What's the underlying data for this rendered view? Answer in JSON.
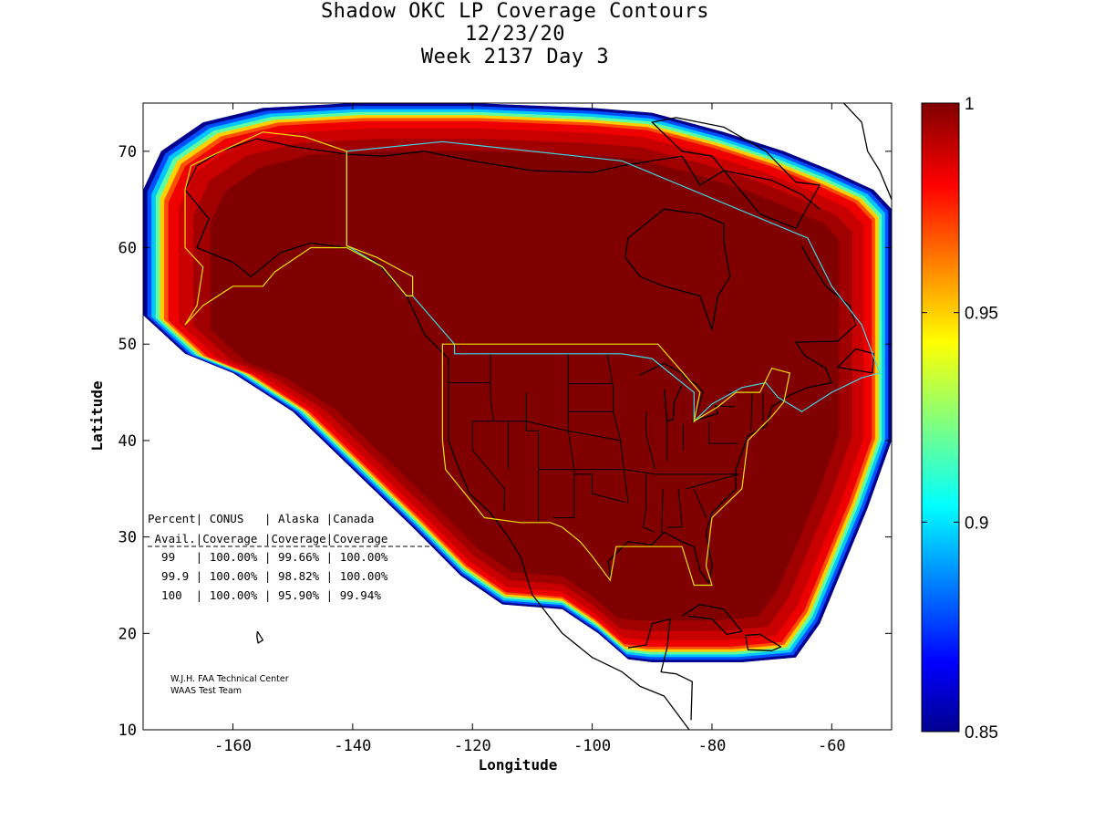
{
  "title": {
    "line1": "Shadow OKC LP Coverage Contours",
    "line2": "12/23/20",
    "line3": "Week 2137 Day 3"
  },
  "chart_data": {
    "type": "heatmap",
    "title": "Shadow OKC LP Coverage Contours",
    "subtitle": [
      "12/23/20",
      "Week 2137 Day 3"
    ],
    "xlabel": "Longitude",
    "ylabel": "Latitude",
    "xlim": [
      -175,
      -50
    ],
    "ylim": [
      10,
      75
    ],
    "xticks": [
      -160,
      -140,
      -120,
      -100,
      -80,
      -60
    ],
    "yticks": [
      10,
      20,
      30,
      40,
      50,
      60,
      70
    ],
    "colorbar": {
      "min": 0.85,
      "max": 1,
      "ticks": [
        0.85,
        0.9,
        0.95,
        1
      ],
      "tick_labels": [
        "0.85",
        "0.9",
        "0.95",
        "1"
      ],
      "colormap": "jet"
    },
    "coverage_region": [
      [
        -175,
        66
      ],
      [
        -172,
        70
      ],
      [
        -165,
        73
      ],
      [
        -155,
        74.5
      ],
      [
        -140,
        75
      ],
      [
        -120,
        75
      ],
      [
        -100,
        74.5
      ],
      [
        -90,
        74
      ],
      [
        -78,
        72
      ],
      [
        -68,
        70
      ],
      [
        -60,
        68
      ],
      [
        -53,
        66
      ],
      [
        -50,
        64
      ],
      [
        -50,
        40
      ],
      [
        -54,
        33
      ],
      [
        -58,
        27
      ],
      [
        -62,
        21
      ],
      [
        -66,
        17.5
      ],
      [
        -75,
        17
      ],
      [
        -90,
        17
      ],
      [
        -94,
        17.3
      ],
      [
        -99,
        20
      ],
      [
        -105,
        22.5
      ],
      [
        -115,
        23
      ],
      [
        -122,
        26
      ],
      [
        -130,
        31
      ],
      [
        -140,
        37
      ],
      [
        -150,
        43
      ],
      [
        -160,
        47
      ],
      [
        -168,
        49
      ],
      [
        -175,
        53
      ]
    ],
    "regions": {
      "conus_boundary": [
        [
          -125,
          50
        ],
        [
          -95,
          50
        ],
        [
          -89,
          50
        ],
        [
          -82,
          45
        ],
        [
          -83,
          42
        ],
        [
          -79,
          43.5
        ],
        [
          -76,
          45
        ],
        [
          -72,
          45
        ],
        [
          -70,
          47.5
        ],
        [
          -67,
          47
        ],
        [
          -68,
          44
        ],
        [
          -70,
          42.5
        ],
        [
          -74,
          40
        ],
        [
          -75,
          35
        ],
        [
          -80,
          32
        ],
        [
          -81,
          27
        ],
        [
          -80,
          25
        ],
        [
          -83,
          25
        ],
        [
          -85,
          29
        ],
        [
          -90,
          29
        ],
        [
          -96,
          29
        ],
        [
          -97,
          25.5
        ],
        [
          -100,
          28
        ],
        [
          -102,
          29.5
        ],
        [
          -105,
          31
        ],
        [
          -107,
          31.5
        ],
        [
          -112,
          31.5
        ],
        [
          -118,
          32
        ],
        [
          -124.5,
          37
        ],
        [
          -125,
          40
        ],
        [
          -125,
          50
        ]
      ],
      "alaska_boundary": [
        [
          -168,
          52
        ],
        [
          -165,
          54
        ],
        [
          -160,
          56
        ],
        [
          -155,
          56
        ],
        [
          -153,
          57.5
        ],
        [
          -147,
          60
        ],
        [
          -141,
          60
        ],
        [
          -135,
          58
        ],
        [
          -131,
          55
        ],
        [
          -130,
          55
        ],
        [
          -130,
          57
        ],
        [
          -136,
          59
        ],
        [
          -141,
          60.2
        ],
        [
          -141,
          70
        ],
        [
          -148,
          71.5
        ],
        [
          -155,
          72
        ],
        [
          -162,
          70
        ],
        [
          -167,
          68.5
        ],
        [
          -168,
          66
        ],
        [
          -168,
          60
        ],
        [
          -165,
          58
        ],
        [
          -166,
          54
        ],
        [
          -168,
          52
        ]
      ],
      "canada_boundary": [
        [
          -141,
          70
        ],
        [
          -125,
          71
        ],
        [
          -95,
          69
        ],
        [
          -64,
          61
        ],
        [
          -60,
          56
        ],
        [
          -55,
          52
        ],
        [
          -52,
          47
        ],
        [
          -55,
          46.5
        ],
        [
          -60,
          45
        ],
        [
          -65,
          43
        ],
        [
          -69,
          44.5
        ],
        [
          -71,
          46
        ],
        [
          -75,
          45.5
        ],
        [
          -80,
          43.8
        ],
        [
          -83,
          42
        ],
        [
          -83,
          45
        ],
        [
          -90,
          48.5
        ],
        [
          -95,
          49
        ],
        [
          -123,
          49
        ],
        [
          -123,
          50
        ],
        [
          -130,
          55
        ],
        [
          -131,
          55
        ],
        [
          -135,
          58
        ],
        [
          -141,
          60.2
        ],
        [
          -141,
          70
        ]
      ]
    }
  },
  "coverage_table": {
    "header1": "Percent| CONUS   | Alaska |Canada",
    "header2": " Avail.|Coverage |Coverage|Coverage",
    "rows": [
      "  99   | 100.00% | 99.66% | 100.00%",
      "  99.9 | 100.00% | 98.82% | 100.00%",
      "  100  | 100.00% | 95.90% | 99.94%"
    ]
  },
  "credit": {
    "line1": "W.J.H. FAA Technical Center",
    "line2": "WAAS Test Team"
  },
  "colors": {
    "background": "#ffffff",
    "coverage_max": "#800000",
    "conus_outline": "#f0e000",
    "canada_outline": "#40d8e8",
    "coastline": "#000000"
  }
}
